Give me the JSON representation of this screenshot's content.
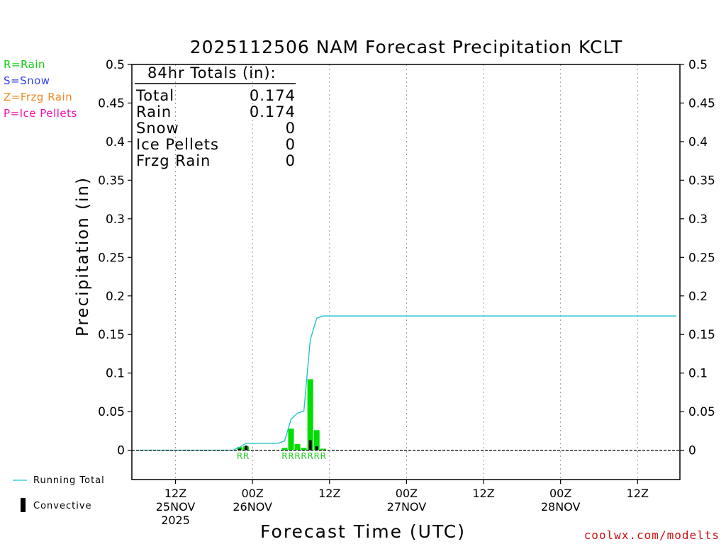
{
  "chart_data": {
    "type": "bar",
    "title": "2025112506 NAM Forecast Precipitation KCLT",
    "xlabel": "Forecast Time (UTC)",
    "ylabel": "Precipitation (in)",
    "ylim": [
      -0.038,
      0.5
    ],
    "y_ticks": [
      0,
      0.05,
      0.1,
      0.15,
      0.2,
      0.25,
      0.3,
      0.35,
      0.4,
      0.45,
      0.5
    ],
    "y_tick_labels": [
      "0",
      "0.05",
      "0.1",
      "0.15",
      "0.2",
      "0.25",
      "0.3",
      "0.35",
      "0.4",
      "0.45",
      "0.5"
    ],
    "x_unit": "forecast hour",
    "xlim": [
      -0.8,
      84.6
    ],
    "x_ticks": [
      {
        "hour": 6,
        "line1": "12Z",
        "line2": "25NOV",
        "line3": "2025"
      },
      {
        "hour": 18,
        "line1": "00Z",
        "line2": "26NOV",
        "line3": ""
      },
      {
        "hour": 30,
        "line1": "12Z",
        "line2": "",
        "line3": ""
      },
      {
        "hour": 42,
        "line1": "00Z",
        "line2": "27NOV",
        "line3": ""
      },
      {
        "hour": 54,
        "line1": "12Z",
        "line2": "",
        "line3": ""
      },
      {
        "hour": 66,
        "line1": "00Z",
        "line2": "28NOV",
        "line3": ""
      },
      {
        "hour": 78,
        "line1": "12Z",
        "line2": "",
        "line3": ""
      }
    ],
    "precip_bars": [
      {
        "hour": 16,
        "value": 0.004
      },
      {
        "hour": 17,
        "value": 0.005
      },
      {
        "hour": 23,
        "value": 0.003
      },
      {
        "hour": 24,
        "value": 0.028
      },
      {
        "hour": 25,
        "value": 0.008
      },
      {
        "hour": 26,
        "value": 0.003
      },
      {
        "hour": 27,
        "value": 0.092
      },
      {
        "hour": 28,
        "value": 0.026
      },
      {
        "hour": 29,
        "value": 0.002
      }
    ],
    "convective_bars": [
      {
        "hour": 16,
        "value": 0.002
      },
      {
        "hour": 17,
        "value": 0.006
      },
      {
        "hour": 27,
        "value": 0.013
      },
      {
        "hour": 28,
        "value": 0.005
      }
    ],
    "ptype_labels": [
      {
        "hour": 16,
        "text": "R"
      },
      {
        "hour": 17,
        "text": "R"
      },
      {
        "hour": 23,
        "text": "R"
      },
      {
        "hour": 24,
        "text": "R"
      },
      {
        "hour": 25,
        "text": "R"
      },
      {
        "hour": 26,
        "text": "R"
      },
      {
        "hour": 27,
        "text": "R"
      },
      {
        "hour": 28,
        "text": "R"
      },
      {
        "hour": 29,
        "text": "R"
      }
    ],
    "running_total": {
      "name": "Running Total",
      "x": [
        0,
        15,
        16,
        17,
        22,
        23,
        24,
        25,
        26,
        27,
        28,
        29,
        84
      ],
      "y": [
        0,
        0,
        0.004,
        0.009,
        0.009,
        0.012,
        0.04,
        0.048,
        0.051,
        0.143,
        0.171,
        0.174,
        0.174
      ]
    },
    "zero_line": true,
    "grid": "vertical dotted"
  },
  "totals_box": {
    "header": "84hr Totals (in):",
    "rows": [
      {
        "label": "Total",
        "value": "0.174"
      },
      {
        "label": "Rain",
        "value": "0.174"
      },
      {
        "label": "Snow",
        "value": "0"
      },
      {
        "label": "Ice Pellets",
        "value": "0"
      },
      {
        "label": "Frzg Rain",
        "value": "0"
      }
    ]
  },
  "ptype_legend": [
    {
      "text": "R=Rain",
      "color": "#11cc11"
    },
    {
      "text": "S=Snow",
      "color": "#3344ee"
    },
    {
      "text": "Z=Frzg Rain",
      "color": "#ee8822"
    },
    {
      "text": "P=Ice Pellets",
      "color": "#ee11aa"
    }
  ],
  "series_legend": {
    "running_total": "Running Total",
    "convective": "Convective"
  },
  "watermark": "coolwx.com/modelts",
  "colors": {
    "precip_bar": "#00dd00",
    "convective_bar": "#000000",
    "running_total": "#22c4cc",
    "ptype_label": "#22cc22",
    "watermark": "#cc1111",
    "grid": "#999999"
  }
}
